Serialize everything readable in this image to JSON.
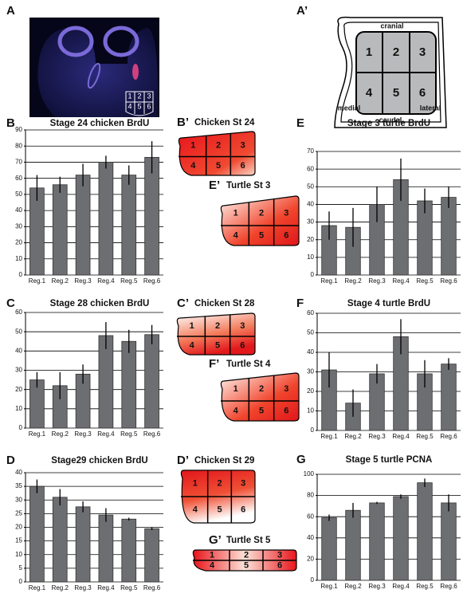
{
  "chart_data": [
    {
      "type": "bar",
      "panel": "B",
      "title": "Stage 24 chicken BrdU",
      "categories": [
        "Reg.1",
        "Reg.2",
        "Reg.3",
        "Reg.4",
        "Reg.5",
        "Reg.6"
      ],
      "values": [
        54,
        56,
        62,
        70,
        62,
        73
      ],
      "errors": [
        8,
        5,
        7,
        4,
        6,
        10
      ],
      "color": "#6d6e71",
      "ylim": [
        0,
        90
      ],
      "yticks": [
        0,
        10,
        20,
        30,
        40,
        50,
        60,
        70,
        80,
        90
      ],
      "grid": true
    },
    {
      "type": "bar",
      "panel": "C",
      "title": "Stage 28 chicken BrdU",
      "categories": [
        "Reg.1",
        "Reg.2",
        "Reg.3",
        "Reg.4",
        "Reg.5",
        "Reg.6"
      ],
      "values": [
        25,
        22,
        28,
        48,
        45,
        48.5
      ],
      "errors": [
        4,
        7,
        5,
        7,
        6,
        5
      ],
      "color": "#6d6e71",
      "ylim": [
        0,
        60
      ],
      "yticks": [
        0,
        10,
        20,
        30,
        40,
        50,
        60
      ],
      "grid": true
    },
    {
      "type": "bar",
      "panel": "D",
      "title": "Stage29 chicken BrdU",
      "categories": [
        "Reg.1",
        "Reg.2",
        "Reg.3",
        "Reg.4",
        "Reg.5",
        "Reg.6"
      ],
      "values": [
        35,
        31,
        27.5,
        24.5,
        23,
        19.5
      ],
      "errors": [
        2.5,
        3,
        2,
        2.5,
        0.5,
        0.5
      ],
      "color": "#6d6e71",
      "ylim": [
        0,
        40
      ],
      "yticks": [
        0,
        5,
        10,
        15,
        20,
        25,
        30,
        35,
        40
      ],
      "grid": true
    },
    {
      "type": "bar",
      "panel": "E",
      "title": "Stage 3 turtle BrdU",
      "categories": [
        "Reg.1",
        "Reg.2",
        "Reg.3",
        "Reg.4",
        "Reg.5",
        "Reg.6"
      ],
      "values": [
        28,
        27,
        40,
        54,
        42,
        44
      ],
      "errors": [
        8,
        11,
        10,
        12,
        7,
        6
      ],
      "color": "#6d6e71",
      "ylim": [
        0,
        70
      ],
      "yticks": [
        0,
        10,
        20,
        30,
        40,
        50,
        60,
        70
      ],
      "grid": true
    },
    {
      "type": "bar",
      "panel": "F",
      "title": "Stage 4 turtle BrdU",
      "categories": [
        "Reg.1",
        "Reg.2",
        "Reg.3",
        "Reg.4",
        "Reg.5",
        "Reg.6"
      ],
      "values": [
        31,
        14,
        29,
        48,
        29,
        34
      ],
      "errors": [
        9,
        7,
        5,
        9,
        7,
        3
      ],
      "color": "#6d6e71",
      "ylim": [
        0,
        60
      ],
      "yticks": [
        0,
        10,
        20,
        30,
        40,
        50,
        60
      ],
      "grid": true
    },
    {
      "type": "bar",
      "panel": "G",
      "title": "Stage 5 turtle PCNA",
      "categories": [
        "Reg.1",
        "Reg.2",
        "Reg.3",
        "Reg.4",
        "Reg.5",
        "Reg.6"
      ],
      "values": [
        59,
        66,
        73,
        79,
        92,
        73
      ],
      "errors": [
        3,
        7,
        1,
        2,
        4,
        8
      ],
      "color": "#6d6e71",
      "ylim": [
        0,
        100
      ],
      "yticks": [
        0,
        20,
        40,
        60,
        80,
        100
      ],
      "grid": true
    }
  ],
  "image_panel": {
    "label": "A",
    "cells": [
      "1",
      "2",
      "3",
      "4",
      "5",
      "6"
    ]
  },
  "schematic": {
    "label": "A’",
    "cranial": "cranial",
    "medial": "medial",
    "caudal": "caudal",
    "lateral": "lateral",
    "cells": [
      "1",
      "2",
      "3",
      "4",
      "5",
      "6"
    ]
  },
  "diagrams": [
    {
      "label": "B’",
      "title": "Chicken St 24",
      "cells": [
        "1",
        "2",
        "3",
        "4",
        "5",
        "6"
      ]
    },
    {
      "label": "E’",
      "title": "Turtle St 3",
      "cells": [
        "1",
        "2",
        "3",
        "4",
        "5",
        "6"
      ]
    },
    {
      "label": "C’",
      "title": "Chicken St 28",
      "cells": [
        "1",
        "2",
        "3",
        "4",
        "5",
        "6"
      ]
    },
    {
      "label": "F’",
      "title": "Turtle St 4",
      "cells": [
        "1",
        "2",
        "3",
        "4",
        "5",
        "6"
      ]
    },
    {
      "label": "D’",
      "title": "Chicken St 29",
      "cells": [
        "1",
        "2",
        "3",
        "4",
        "5",
        "6"
      ]
    },
    {
      "label": "G’",
      "title": "Turtle St 5",
      "cells": [
        "1",
        "2",
        "3",
        "4",
        "5",
        "6"
      ]
    }
  ]
}
